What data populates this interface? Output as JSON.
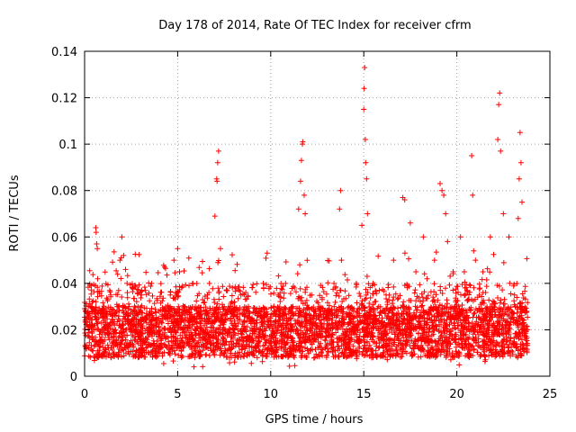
{
  "chart_data": {
    "type": "scatter",
    "title": "Day 178 of 2014, Rate Of TEC Index for receiver cfrm",
    "xlabel": "GPS time / hours",
    "ylabel": "ROTI / TECUs",
    "xlim": [
      0,
      25
    ],
    "ylim": [
      0,
      0.14
    ],
    "x_ticks": [
      0,
      5,
      10,
      15,
      20,
      25
    ],
    "x_tick_labels": [
      "0",
      "5",
      "10",
      "15",
      "20",
      "25"
    ],
    "y_ticks": [
      0,
      0.02,
      0.04,
      0.06,
      0.08,
      0.1,
      0.12,
      0.14
    ],
    "y_tick_labels": [
      "0",
      "0.02",
      "0.04",
      "0.06",
      "0.08",
      "0.1",
      "0.12",
      "0.14"
    ],
    "grid": true,
    "marker": "+",
    "color": "#ff0000",
    "series": [
      {
        "name": "ROTI",
        "description_note": "dense band 0.005-0.04 from 0 to 23.8 h; peaks listed below",
        "points": [
          [
            0.1,
            0.012
          ],
          [
            0.2,
            0.03
          ],
          [
            0.3,
            0.025
          ],
          [
            0.5,
            0.02
          ],
          [
            0.6,
            0.064
          ],
          [
            0.62,
            0.062
          ],
          [
            0.65,
            0.057
          ],
          [
            0.68,
            0.055
          ],
          [
            0.7,
            0.042
          ],
          [
            0.8,
            0.018
          ],
          [
            1.0,
            0.015
          ],
          [
            1.2,
            0.028
          ],
          [
            1.4,
            0.035
          ],
          [
            1.6,
            0.022
          ],
          [
            1.8,
            0.03
          ],
          [
            1.9,
            0.05
          ],
          [
            2.0,
            0.06
          ],
          [
            2.1,
            0.052
          ],
          [
            2.2,
            0.046
          ],
          [
            2.4,
            0.03
          ],
          [
            2.6,
            0.038
          ],
          [
            2.8,
            0.02
          ],
          [
            3.0,
            0.012
          ],
          [
            3.3,
            0.025
          ],
          [
            3.6,
            0.04
          ],
          [
            4.0,
            0.028
          ],
          [
            4.3,
            0.047
          ],
          [
            4.6,
            0.03
          ],
          [
            4.8,
            0.05
          ],
          [
            5.0,
            0.055
          ],
          [
            5.1,
            0.045
          ],
          [
            5.4,
            0.03
          ],
          [
            5.8,
            0.04
          ],
          [
            6.2,
            0.025
          ],
          [
            6.6,
            0.035
          ],
          [
            7.0,
            0.069
          ],
          [
            7.1,
            0.085
          ],
          [
            7.12,
            0.084
          ],
          [
            7.15,
            0.092
          ],
          [
            7.2,
            0.097
          ],
          [
            7.3,
            0.055
          ],
          [
            7.5,
            0.03
          ],
          [
            8.0,
            0.02
          ],
          [
            8.4,
            0.035
          ],
          [
            8.8,
            0.03
          ],
          [
            9.2,
            0.028
          ],
          [
            9.6,
            0.04
          ],
          [
            10.0,
            0.025
          ],
          [
            10.4,
            0.035
          ],
          [
            10.8,
            0.04
          ],
          [
            11.2,
            0.03
          ],
          [
            11.5,
            0.072
          ],
          [
            11.6,
            0.084
          ],
          [
            11.65,
            0.093
          ],
          [
            11.7,
            0.1
          ],
          [
            11.72,
            0.101
          ],
          [
            11.8,
            0.078
          ],
          [
            11.85,
            0.07
          ],
          [
            12.2,
            0.035
          ],
          [
            12.6,
            0.03
          ],
          [
            13.0,
            0.025
          ],
          [
            13.4,
            0.04
          ],
          [
            13.7,
            0.072
          ],
          [
            13.75,
            0.08
          ],
          [
            13.8,
            0.05
          ],
          [
            14.2,
            0.03
          ],
          [
            14.6,
            0.04
          ],
          [
            14.9,
            0.065
          ],
          [
            15.0,
            0.115
          ],
          [
            15.02,
            0.124
          ],
          [
            15.05,
            0.133
          ],
          [
            15.08,
            0.102
          ],
          [
            15.1,
            0.092
          ],
          [
            15.15,
            0.085
          ],
          [
            15.2,
            0.07
          ],
          [
            15.5,
            0.04
          ],
          [
            15.8,
            0.03
          ],
          [
            16.2,
            0.035
          ],
          [
            16.6,
            0.05
          ],
          [
            17.1,
            0.077
          ],
          [
            17.2,
            0.076
          ],
          [
            17.5,
            0.066
          ],
          [
            17.8,
            0.045
          ],
          [
            18.2,
            0.06
          ],
          [
            18.4,
            0.042
          ],
          [
            18.8,
            0.05
          ],
          [
            19.1,
            0.083
          ],
          [
            19.2,
            0.08
          ],
          [
            19.3,
            0.078
          ],
          [
            19.4,
            0.07
          ],
          [
            19.5,
            0.058
          ],
          [
            19.8,
            0.045
          ],
          [
            20.2,
            0.06
          ],
          [
            20.4,
            0.045
          ],
          [
            20.8,
            0.095
          ],
          [
            20.85,
            0.078
          ],
          [
            21.0,
            0.05
          ],
          [
            21.4,
            0.045
          ],
          [
            21.8,
            0.06
          ],
          [
            22.2,
            0.102
          ],
          [
            22.25,
            0.117
          ],
          [
            22.3,
            0.122
          ],
          [
            22.35,
            0.097
          ],
          [
            22.5,
            0.07
          ],
          [
            22.8,
            0.06
          ],
          [
            23.1,
            0.035
          ],
          [
            23.3,
            0.068
          ],
          [
            23.35,
            0.085
          ],
          [
            23.4,
            0.105
          ],
          [
            23.45,
            0.092
          ],
          [
            23.5,
            0.075
          ],
          [
            23.8,
            0.02
          ]
        ]
      }
    ]
  }
}
